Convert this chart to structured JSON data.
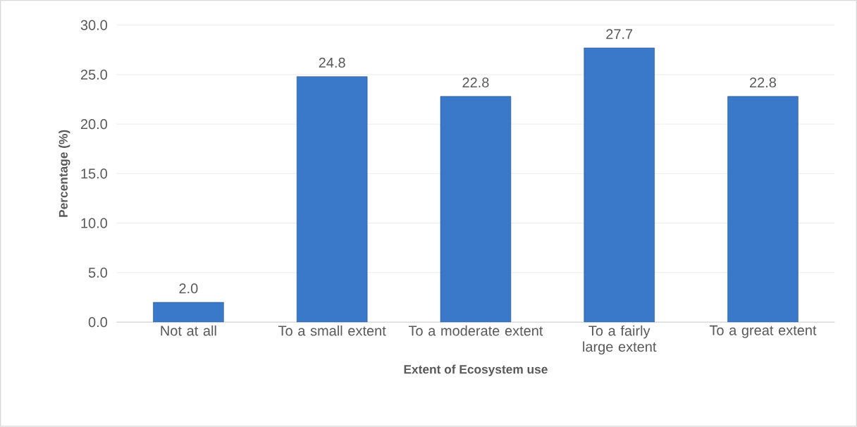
{
  "chart_data": {
    "type": "bar",
    "xlabel": "Extent of Ecosystem use",
    "ylabel": "Percentage (%)",
    "categories": [
      "Not at all",
      "To a small extent",
      "To a moderate extent",
      "To a fairly large extent",
      "To a great extent"
    ],
    "values": [
      2.0,
      24.8,
      22.8,
      27.7,
      22.8
    ],
    "value_labels": [
      "2.0",
      "24.8",
      "22.8",
      "27.7",
      "22.8"
    ],
    "color": "#3a78c9",
    "ylim": [
      0,
      30
    ],
    "yticks": [
      {
        "value": 0,
        "label": "0.0"
      },
      {
        "value": 5,
        "label": "5.0"
      },
      {
        "value": 10,
        "label": "10.0"
      },
      {
        "value": 15,
        "label": "15.0"
      },
      {
        "value": 20,
        "label": "20.0"
      },
      {
        "value": 25,
        "label": "25.0"
      },
      {
        "value": 30,
        "label": "30.0"
      }
    ],
    "grid": "y"
  }
}
